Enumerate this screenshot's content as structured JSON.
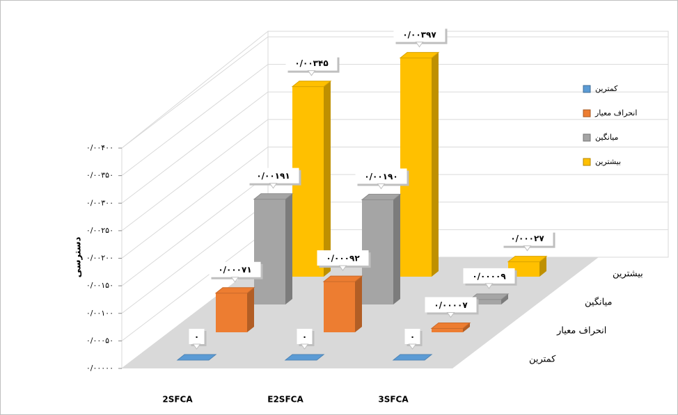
{
  "chart_data": {
    "type": "bar3d",
    "y_label": "دسترسی",
    "categories": [
      "2SFCA",
      "E2SFCA",
      "3SFCA"
    ],
    "series": [
      {
        "name": "کمترین",
        "color": "#5b9bd5",
        "values": [
          0,
          0,
          0
        ],
        "value_labels": [
          "۰",
          "۰",
          "۰"
        ]
      },
      {
        "name": "انحراف معیار",
        "color": "#ed7d31",
        "values": [
          0.00071,
          0.00092,
          7e-05
        ],
        "value_labels": [
          "۰/۰۰۰۷۱",
          "۰/۰۰۰۹۲",
          "۰/۰۰۰۰۷"
        ]
      },
      {
        "name": "میانگین",
        "color": "#a5a5a5",
        "values": [
          0.00191,
          0.0019,
          9e-05
        ],
        "value_labels": [
          "۰/۰۰۱۹۱",
          "۰/۰۰۱۹۰",
          "۰/۰۰۰۰۹"
        ]
      },
      {
        "name": "بیشترین",
        "color": "#ffc000",
        "values": [
          0.00345,
          0.00397,
          0.00027
        ],
        "value_labels": [
          "۰/۰۰۳۴۵",
          "۰/۰۰۳۹۷",
          "۰/۰۰۰۲۷"
        ]
      }
    ],
    "ylim": [
      0,
      0.004
    ],
    "yticks": [
      {
        "value": 0,
        "label": "۰/۰۰۰۰۰"
      },
      {
        "value": 0.0005,
        "label": "۰/۰۰۰۵۰"
      },
      {
        "value": 0.001,
        "label": "۰/۰۰۱۰۰"
      },
      {
        "value": 0.0015,
        "label": "۰/۰۰۱۵۰"
      },
      {
        "value": 0.002,
        "label": "۰/۰۰۲۰۰"
      },
      {
        "value": 0.0025,
        "label": "۰/۰۰۲۵۰"
      },
      {
        "value": 0.003,
        "label": "۰/۰۰۳۰۰"
      },
      {
        "value": 0.0035,
        "label": "۰/۰۰۳۵۰"
      },
      {
        "value": 0.004,
        "label": "۰/۰۰۴۰۰"
      }
    ],
    "grid": true,
    "legend": "right"
  }
}
